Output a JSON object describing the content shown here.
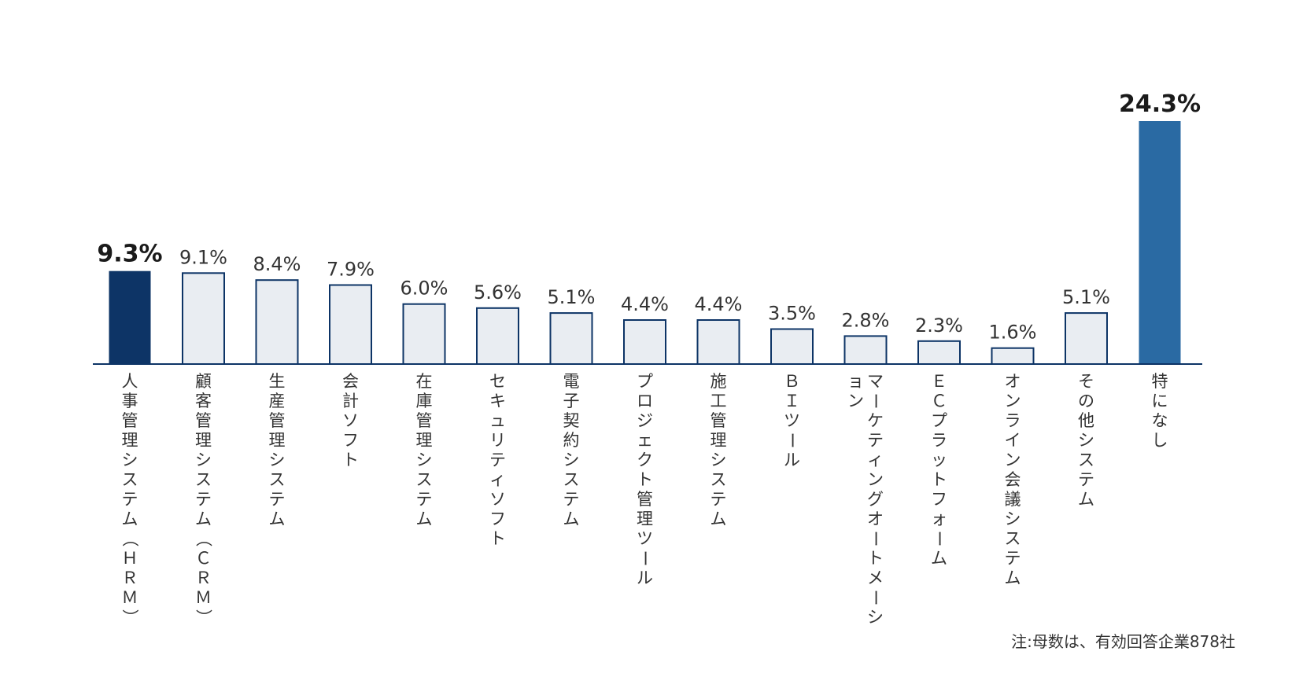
{
  "chart_data": {
    "type": "bar",
    "categories": [
      "人事管理システム（ＨＲＭ）",
      "顧客管理システム（ＣＲＭ）",
      "生産管理システム",
      "会計ソフト",
      "在庫管理システム",
      "セキュリティソフト",
      "電子契約システム",
      "プロジェクト管理ツール",
      "施工管理システム",
      "ＢＩツール",
      "マーケティングオートメーション",
      "ＥＣプラットフォーム",
      "オンライン会議システム",
      "その他システム",
      "特になし"
    ],
    "values": [
      9.3,
      9.1,
      8.4,
      7.9,
      6.0,
      5.6,
      5.1,
      4.4,
      4.4,
      3.5,
      2.8,
      2.3,
      1.6,
      5.1,
      24.3
    ],
    "value_labels": [
      "9.3%",
      "9.1%",
      "8.4%",
      "7.9%",
      "6.0%",
      "5.6%",
      "5.1%",
      "4.4%",
      "4.4%",
      "3.5%",
      "2.8%",
      "2.3%",
      "1.6%",
      "5.1%",
      "24.3%"
    ],
    "highlight": [
      0,
      14
    ],
    "colors": {
      "first": "#0d3466",
      "last": "#2a6aa3",
      "default_fill": "#e9edf2",
      "default_stroke": "#0d3466",
      "axis": "#0d3466"
    },
    "ylim": [
      0,
      24.3
    ],
    "grid": false,
    "legend": "none",
    "note": "注:母数は、有効回答企業878社"
  }
}
